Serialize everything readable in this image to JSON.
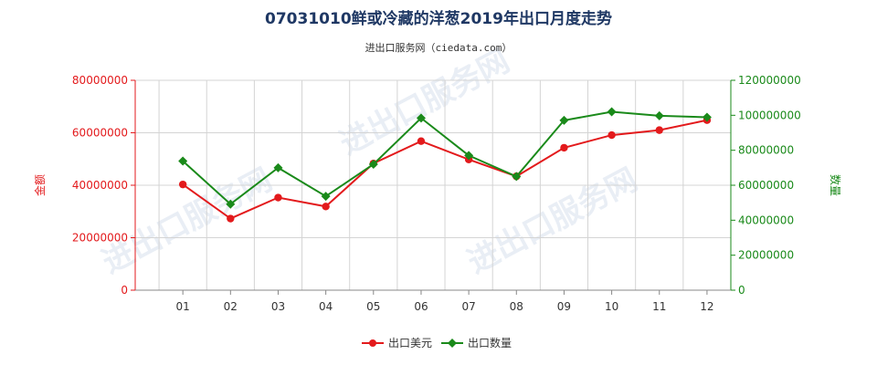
{
  "chart_data": {
    "type": "line",
    "title": "07031010鲜或冷藏的洋葱2019年出口月度走势",
    "subtitle": "进出口服务网（ciedata.com）",
    "watermark": "进出口服务网",
    "categories": [
      "01",
      "02",
      "03",
      "04",
      "05",
      "06",
      "07",
      "08",
      "09",
      "10",
      "11",
      "12"
    ],
    "series": [
      {
        "name": "出口美元",
        "axis": "left",
        "color": "#e31a1c",
        "values": [
          40300000,
          27300000,
          35300000,
          31900000,
          48300000,
          56800000,
          49800000,
          43400000,
          54300000,
          59100000,
          61000000,
          64800000
        ]
      },
      {
        "name": "出口数量",
        "axis": "right",
        "color": "#1a8a1a",
        "values": [
          73800000,
          49200000,
          70000000,
          53700000,
          72000000,
          98400000,
          77000000,
          65000000,
          97100000,
          102000000,
          99700000,
          98900000
        ]
      }
    ],
    "y_left": {
      "label": "金额",
      "ylim": [
        0,
        80000000
      ],
      "ticks": [
        "0",
        "20000000",
        "40000000",
        "60000000",
        "80000000"
      ],
      "color": "#e31a1c"
    },
    "y_right": {
      "label": "数量",
      "ylim": [
        0,
        120000000
      ],
      "ticks": [
        "0",
        "20000000",
        "40000000",
        "60000000",
        "80000000",
        "100000000",
        "120000000"
      ],
      "color": "#1a8a1a"
    },
    "grid": true,
    "legend_position": "bottom-center"
  }
}
